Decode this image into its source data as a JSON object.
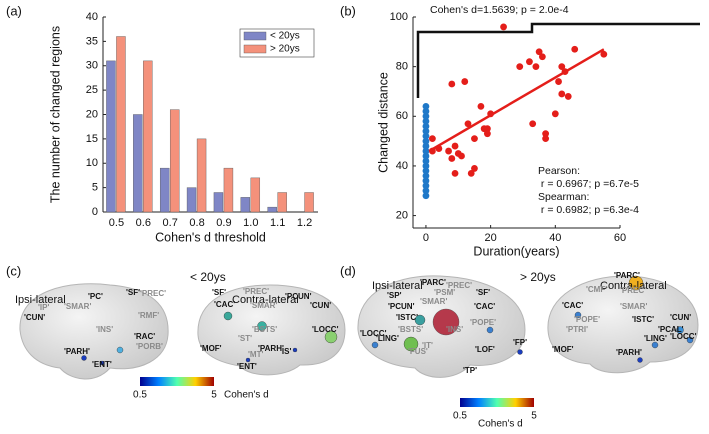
{
  "chart_data": [
    {
      "type": "bar",
      "panel_label": "(a)",
      "x_label": "Cohen's d threshold",
      "y_label": "The number of changed regions",
      "categories": [
        "0.5",
        "0.6",
        "0.7",
        "0.8",
        "0.9",
        "1.0",
        "1.1",
        "1.2"
      ],
      "series": [
        {
          "name": "< 20ys",
          "color": "#7f86c6",
          "values": [
            31,
            20,
            9,
            5,
            4,
            3,
            1,
            0
          ]
        },
        {
          "name": "> 20ys",
          "color": "#f4917b",
          "values": [
            36,
            31,
            21,
            15,
            9,
            7,
            4,
            4
          ]
        }
      ],
      "ylim": [
        0,
        40
      ],
      "yticks": [
        0,
        5,
        10,
        15,
        20,
        25,
        30,
        35,
        40
      ],
      "legend": "upper right"
    },
    {
      "type": "scatter",
      "panel_label": "(b)",
      "x_label": "Duration(years)",
      "y_label": "Changed distance",
      "annotations": [
        "Cohen's d=1.5639; p = 2.0e-4",
        "Pearson:",
        " r = 0.6967; p =6.7e-5",
        "Spearman:",
        " r = 0.6982; p =6.3e-4"
      ],
      "series": [
        {
          "color": "#1f78c8",
          "x": [
            0,
            0,
            0,
            0,
            0,
            0,
            0,
            0,
            0,
            0,
            0,
            0,
            0,
            0,
            0,
            0,
            0,
            0,
            0
          ],
          "values": [
            28,
            30,
            32,
            34,
            36,
            38,
            40,
            42,
            44,
            46,
            48,
            50,
            52,
            54,
            56,
            58,
            60,
            62,
            64
          ]
        },
        {
          "color": "#e41e1a",
          "x": [
            2,
            2,
            4,
            7,
            8,
            8,
            9,
            9,
            10,
            11,
            12,
            13,
            14,
            15,
            15,
            17,
            18,
            19,
            19,
            20,
            24,
            29,
            32,
            33,
            34,
            35,
            36,
            37,
            37,
            40,
            41,
            42,
            42,
            43,
            44,
            46,
            55
          ],
          "values": [
            51,
            46,
            47,
            46,
            73,
            43,
            48,
            37,
            45,
            44,
            74,
            57,
            37,
            39,
            51,
            64,
            55,
            55,
            53,
            61,
            96,
            80,
            82,
            57,
            80,
            86,
            84,
            53,
            51,
            61,
            74,
            80,
            69,
            78,
            68,
            87,
            85
          ]
        }
      ],
      "fit": {
        "color": "#e41e1a",
        "x": [
          1,
          55
        ],
        "values": [
          46,
          87
        ]
      },
      "xlim": [
        -4,
        60
      ],
      "xticks": [
        0,
        20,
        40,
        60
      ],
      "ylim": [
        15,
        100
      ],
      "yticks": [
        20,
        40,
        60,
        80,
        100
      ]
    }
  ],
  "brain_panels": [
    {
      "panel_label": "(c)",
      "group": "< 20ys",
      "left_title": "Ipsi-lateral",
      "right_title": "Contra-lateral",
      "left_regions": [
        "'PREC'",
        "'PC'",
        "'SF'",
        "'SMAR'",
        "'RMF'",
        "'IP'",
        "'CUN'",
        "'INS'",
        "'RAC'",
        "'PORB'",
        "'PARH'",
        "'ENT'"
      ],
      "right_regions": [
        "'SF'",
        "'PREC'",
        "'PCUN'",
        "'CAC'",
        "'SMAR'",
        "'CUN'",
        "'BSTS'",
        "'LOCC'",
        "'ST'",
        "'MOF'",
        "'PARH'",
        "'IS'",
        "'MT'",
        "'ENT'"
      ],
      "colorbar": {
        "range": [
          0.5,
          5
        ],
        "label": "Cohen's d"
      }
    },
    {
      "panel_label": "(d)",
      "group": "> 20ys",
      "left_title": "Ipsi-lateral",
      "right_title": "Contra-lateral",
      "left_regions": [
        "'PARC'",
        "'PREC'",
        "'SP'",
        "'PSM'",
        "'SF'",
        "'PCUN'",
        "'SMAR'",
        "'CAC'",
        "'ISTC'",
        "'BSTS'",
        "'INS'",
        "'POPE'",
        "'LOCC'",
        "'LING'",
        "'IT'",
        "'FUS'",
        "'LOF'",
        "'FP'",
        "'TP'"
      ],
      "right_regions": [
        "'PARC'",
        "'CMF'",
        "'PREC'",
        "'CAC'",
        "'SMAR'",
        "'POPE'",
        "'ISTC'",
        "'CUN'",
        "'PTRI'",
        "'PCAL'",
        "'LING'",
        "'LOCC'",
        "'MOF'",
        "'PARH'"
      ],
      "colorbar": {
        "range": [
          0.5,
          5
        ],
        "label": "Cohen's d"
      }
    }
  ]
}
